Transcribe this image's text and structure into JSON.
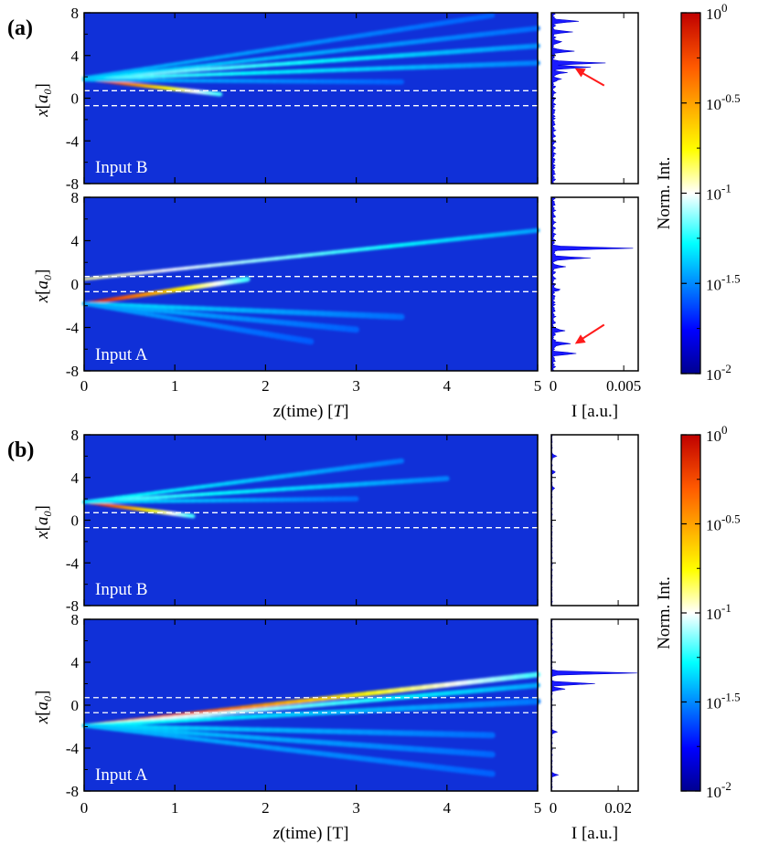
{
  "chart_data": [
    {
      "panel": "(a)",
      "type": "heatmap",
      "colorbar": {
        "label": "Norm. Int.",
        "scale": "log",
        "ticks": [
          {
            "base": "10",
            "exp": "0"
          },
          {
            "base": "10",
            "exp": "-0.5"
          },
          {
            "base": "10",
            "exp": "-1"
          },
          {
            "base": "10",
            "exp": "-1.5"
          },
          {
            "base": "10",
            "exp": "-2"
          }
        ],
        "range": [
          0.01,
          1
        ]
      },
      "xlabel": {
        "pre": "z(time) [",
        "ital": "T",
        "post": "]"
      },
      "xticks": [
        "0",
        "1",
        "2",
        "3",
        "4",
        "5"
      ],
      "yticks": [
        "8",
        "4",
        "0",
        "-4",
        "-8"
      ],
      "xlim": [
        0,
        5
      ],
      "ylim": [
        -8,
        8
      ],
      "guide_lines_x": [
        0.7,
        -0.7
      ],
      "intensity_axis": {
        "label": "I [a.u.]",
        "ticks": [
          "0",
          "0.005"
        ],
        "xlim": [
          0,
          0.006
        ]
      },
      "subplots": [
        {
          "name": "Input B",
          "beams": [
            {
              "x0": 1.8,
              "slope": -0.95,
              "spread": 0.18,
              "end": 1.5,
              "amp": 1.0
            },
            {
              "x0": 1.9,
              "slope": 0.6,
              "spread": 0.25,
              "end": 5.0,
              "amp": 0.35
            },
            {
              "x0": 1.8,
              "slope": 0.3,
              "spread": 0.25,
              "end": 5.0,
              "amp": 0.3
            },
            {
              "x0": 1.8,
              "slope": 0.95,
              "spread": 0.25,
              "end": 5.0,
              "amp": 0.2
            },
            {
              "x0": 1.9,
              "slope": 1.3,
              "spread": 0.25,
              "end": 4.5,
              "amp": 0.15
            },
            {
              "x0": 1.7,
              "slope": -0.05,
              "spread": 0.25,
              "end": 3.5,
              "amp": 0.15
            }
          ],
          "profile": [
            {
              "x": 7.2,
              "I": 0.0018
            },
            {
              "x": 6.2,
              "I": 0.0012
            },
            {
              "x": 5.3,
              "I": 0.0006
            },
            {
              "x": 4.4,
              "I": 0.0014
            },
            {
              "x": 3.3,
              "I": 0.0035
            },
            {
              "x": 2.9,
              "I": 0.0025
            },
            {
              "x": 2.4,
              "I": 0.0009
            },
            {
              "x": 1.8,
              "I": 0.0005
            }
          ],
          "arrow": {
            "x": 2.9,
            "I": 0.0015
          }
        },
        {
          "name": "Input A",
          "beams": [
            {
              "x0": -1.8,
              "slope": 1.25,
              "spread": 0.22,
              "end": 1.8,
              "amp": 1.0
            },
            {
              "x0": 0.45,
              "slope": 0.9,
              "spread": 0.22,
              "end": 5.0,
              "amp": 0.45
            },
            {
              "x0": -1.8,
              "slope": -0.35,
              "spread": 0.3,
              "end": 3.5,
              "amp": 0.2
            },
            {
              "x0": -1.8,
              "slope": -0.8,
              "spread": 0.3,
              "end": 3.0,
              "amp": 0.15
            },
            {
              "x0": -1.8,
              "slope": -1.4,
              "spread": 0.3,
              "end": 2.5,
              "amp": 0.12
            }
          ],
          "profile": [
            {
              "x": 3.3,
              "I": 0.0054
            },
            {
              "x": 2.4,
              "I": 0.0025
            },
            {
              "x": 1.6,
              "I": 0.0007
            },
            {
              "x": -0.5,
              "I": 0.0004
            },
            {
              "x": -4.3,
              "I": 0.0008
            },
            {
              "x": -5.5,
              "I": 0.0012
            },
            {
              "x": -6.4,
              "I": 0.0016
            }
          ],
          "arrow": {
            "x": -5.6,
            "I": 0.0015
          }
        }
      ]
    },
    {
      "panel": "(b)",
      "type": "heatmap",
      "colorbar": {
        "label": "Norm. Int.",
        "scale": "log",
        "ticks": [
          {
            "base": "10",
            "exp": "0"
          },
          {
            "base": "10",
            "exp": "-0.5"
          },
          {
            "base": "10",
            "exp": "-1"
          },
          {
            "base": "10",
            "exp": "-1.5"
          },
          {
            "base": "10",
            "exp": "-2"
          }
        ],
        "range": [
          0.01,
          1
        ]
      },
      "xlabel": {
        "pre": "",
        "ital": "z",
        "post": "(time) [T]"
      },
      "xticks": [
        "0",
        "1",
        "2",
        "3",
        "4",
        "5"
      ],
      "yticks": [
        "8",
        "4",
        "0",
        "-4",
        "-8"
      ],
      "xlim": [
        0,
        5
      ],
      "ylim": [
        -8,
        8
      ],
      "guide_lines_x": [
        0.7,
        -0.7
      ],
      "intensity_axis": {
        "label": "I [a.u.]",
        "ticks": [
          "0",
          "0.02"
        ],
        "xlim": [
          0,
          0.026
        ]
      },
      "subplots": [
        {
          "name": "Input B",
          "beams": [
            {
              "x0": 1.7,
              "slope": -1.1,
              "spread": 0.18,
              "end": 1.2,
              "amp": 1.0
            },
            {
              "x0": 1.7,
              "slope": 0.55,
              "spread": 0.25,
              "end": 4.0,
              "amp": 0.3
            },
            {
              "x0": 1.7,
              "slope": 1.1,
              "spread": 0.25,
              "end": 3.5,
              "amp": 0.25
            },
            {
              "x0": 1.7,
              "slope": 0.1,
              "spread": 0.25,
              "end": 3.0,
              "amp": 0.2
            }
          ],
          "profile": [
            {
              "x": 6.0,
              "I": 0.0015
            },
            {
              "x": 4.5,
              "I": 0.001
            },
            {
              "x": 3.0,
              "I": 0.0008
            }
          ]
        },
        {
          "name": "Input A",
          "beams": [
            {
              "x0": -1.9,
              "slope": 0.95,
              "spread": 0.22,
              "end": 5.0,
              "amp": 1.0
            },
            {
              "x0": -1.9,
              "slope": 0.75,
              "spread": 0.25,
              "end": 5.0,
              "amp": 0.45
            },
            {
              "x0": -1.9,
              "slope": 0.45,
              "spread": 0.3,
              "end": 5.0,
              "amp": 0.25
            },
            {
              "x0": -1.9,
              "slope": -0.2,
              "spread": 0.3,
              "end": 4.5,
              "amp": 0.2
            },
            {
              "x0": -1.9,
              "slope": -0.6,
              "spread": 0.3,
              "end": 4.5,
              "amp": 0.18
            },
            {
              "x0": -1.9,
              "slope": -1.0,
              "spread": 0.3,
              "end": 4.5,
              "amp": 0.15
            }
          ],
          "profile": [
            {
              "x": 3.0,
              "I": 0.0255
            },
            {
              "x": 2.0,
              "I": 0.013
            },
            {
              "x": 1.5,
              "I": 0.004
            },
            {
              "x": -2.5,
              "I": 0.0015
            },
            {
              "x": -6.5,
              "I": 0.0018
            }
          ]
        }
      ]
    }
  ]
}
